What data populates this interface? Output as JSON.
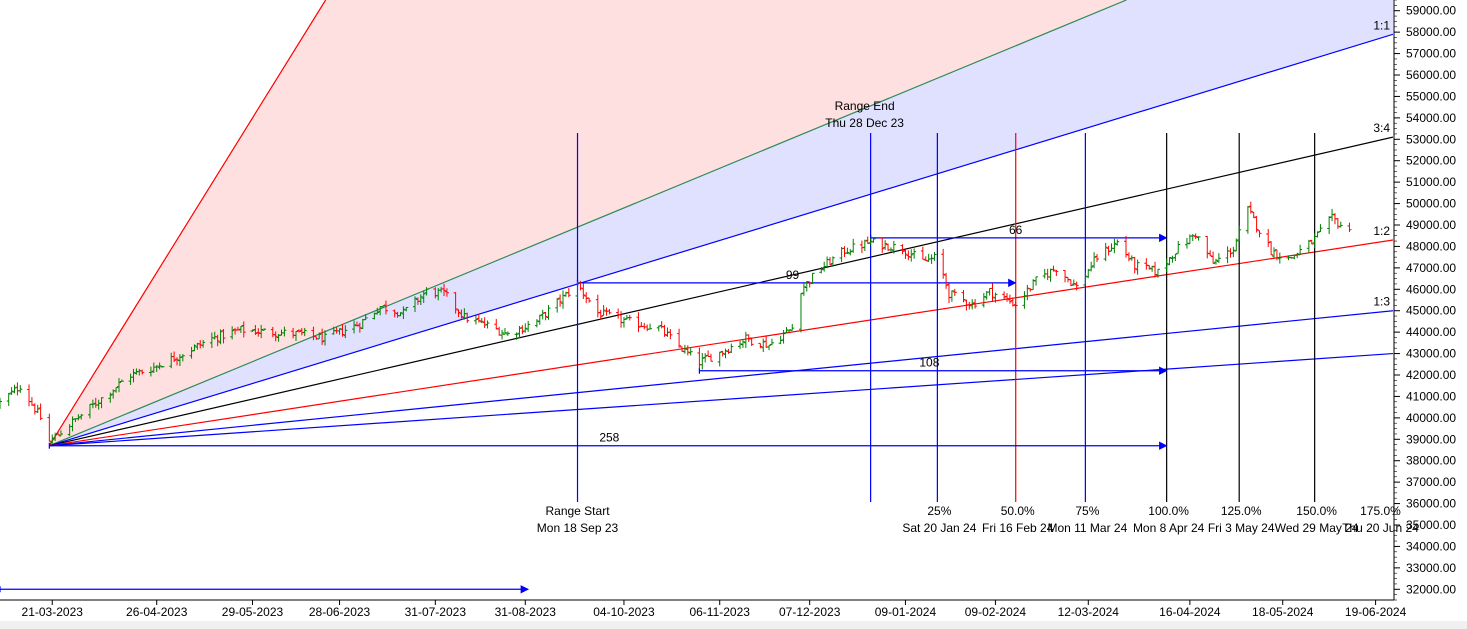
{
  "chart_data": {
    "type": "bar",
    "title": "",
    "xlabel": "",
    "ylabel": "",
    "ylim": [
      31500,
      59500
    ],
    "y_ticks": [
      32000,
      33000,
      34000,
      35000,
      36000,
      37000,
      38000,
      39000,
      40000,
      41000,
      42000,
      43000,
      44000,
      45000,
      46000,
      47000,
      48000,
      49000,
      50000,
      51000,
      52000,
      53000,
      54000,
      55000,
      56000,
      57000,
      58000,
      59000
    ],
    "x_ticks": [
      "21-03-2023",
      "26-04-2023",
      "29-05-2023",
      "28-06-2023",
      "31-07-2023",
      "31-08-2023",
      "04-10-2023",
      "06-11-2023",
      "07-12-2023",
      "09-01-2024",
      "09-02-2024",
      "12-03-2024",
      "16-04-2024",
      "18-05-2024",
      "19-06-2024"
    ],
    "x_start": "2023-03-03",
    "x_end": "2024-06-25",
    "colors": {
      "up": "#008000",
      "down": "#ff0000",
      "fan_blue": "#0000ff",
      "fan_red": "#ff0000",
      "fan_teal": "#2e8b57",
      "fan_black": "#000000",
      "shade_red": "#ffe0e0",
      "shade_blue": "#e0e0ff"
    },
    "ohlc_close_anchors": [
      [
        "2023-03-03",
        40700
      ],
      [
        "2023-03-10",
        41500
      ],
      [
        "2023-03-17",
        40000
      ],
      [
        "2023-03-20",
        38900
      ],
      [
        "2023-03-28",
        39800
      ],
      [
        "2023-04-06",
        40800
      ],
      [
        "2023-04-17",
        42000
      ],
      [
        "2023-04-24",
        42300
      ],
      [
        "2023-05-05",
        43000
      ],
      [
        "2023-05-15",
        43700
      ],
      [
        "2023-05-25",
        44100
      ],
      [
        "2023-06-05",
        44000
      ],
      [
        "2023-06-15",
        43900
      ],
      [
        "2023-06-23",
        43700
      ],
      [
        "2023-07-05",
        44400
      ],
      [
        "2023-07-12",
        45200
      ],
      [
        "2023-07-20",
        44900
      ],
      [
        "2023-07-28",
        45900
      ],
      [
        "2023-08-03",
        45800
      ],
      [
        "2023-08-10",
        44700
      ],
      [
        "2023-08-18",
        44300
      ],
      [
        "2023-08-25",
        43900
      ],
      [
        "2023-09-04",
        44500
      ],
      [
        "2023-09-12",
        45500
      ],
      [
        "2023-09-18",
        46200
      ],
      [
        "2023-09-25",
        44900
      ],
      [
        "2023-10-05",
        44500
      ],
      [
        "2023-10-16",
        44200
      ],
      [
        "2023-10-25",
        43100
      ],
      [
        "2023-10-30",
        42600
      ],
      [
        "2023-11-07",
        43100
      ],
      [
        "2023-11-15",
        43700
      ],
      [
        "2023-11-23",
        43400
      ],
      [
        "2023-12-01",
        44200
      ],
      [
        "2023-12-04",
        46000
      ],
      [
        "2023-12-11",
        47000
      ],
      [
        "2023-12-19",
        47800
      ],
      [
        "2023-12-28",
        48200
      ],
      [
        "2024-01-08",
        47900
      ],
      [
        "2024-01-15",
        47300
      ],
      [
        "2024-01-20",
        47500
      ],
      [
        "2024-01-24",
        45800
      ],
      [
        "2024-02-01",
        45300
      ],
      [
        "2024-02-07",
        45900
      ],
      [
        "2024-02-16",
        45300
      ],
      [
        "2024-02-23",
        46400
      ],
      [
        "2024-03-01",
        47000
      ],
      [
        "2024-03-08",
        46100
      ],
      [
        "2024-03-15",
        47500
      ],
      [
        "2024-03-22",
        48200
      ],
      [
        "2024-03-28",
        47100
      ],
      [
        "2024-04-05",
        46800
      ],
      [
        "2024-04-11",
        47800
      ],
      [
        "2024-04-18",
        48600
      ],
      [
        "2024-04-24",
        47200
      ],
      [
        "2024-05-01",
        47900
      ],
      [
        "2024-05-06",
        49700
      ],
      [
        "2024-05-14",
        47800
      ],
      [
        "2024-05-20",
        47400
      ],
      [
        "2024-05-28",
        48200
      ],
      [
        "2024-06-04",
        49300
      ],
      [
        "2024-06-10",
        48700
      ]
    ],
    "gann_fan": {
      "origin": {
        "date": "2023-03-20",
        "price": 38700
      },
      "lines": [
        {
          "label": "",
          "anchor_date": "2023-06-20",
          "anchor_price": 58800,
          "color": "#ff0000"
        },
        {
          "label": "",
          "anchor_date": "2023-09-18",
          "anchor_price": 48900,
          "color": "#2e8b57"
        },
        {
          "label": "1:1",
          "anchor_date": "2024-06-25",
          "anchor_price": 57900,
          "color": "#0000ff"
        },
        {
          "label": "3:4",
          "anchor_date": "2024-06-25",
          "anchor_price": 53100,
          "color": "#000000"
        },
        {
          "label": "1:2",
          "anchor_date": "2024-06-25",
          "anchor_price": 48300,
          "color": "#ff0000"
        },
        {
          "label": "1:3",
          "anchor_date": "2024-06-25",
          "anchor_price": 45000,
          "color": "#0000ff"
        },
        {
          "label": "",
          "anchor_date": "2024-06-25",
          "anchor_price": 43000,
          "color": "#0000ff"
        }
      ]
    },
    "range_start": {
      "label": "Range Start",
      "date_label": "Mon 18 Sep 23",
      "date": "2023-09-18"
    },
    "range_end": {
      "label": "Range End",
      "date_label": "Thu 28 Dec 23",
      "date": "2023-12-28"
    },
    "fib_time_lines": [
      {
        "pct": "25%",
        "date_label": "Sat 20 Jan 24",
        "date": "2024-01-20",
        "color": "#0000ff"
      },
      {
        "pct": "50.0%",
        "date_label": "Fri 16 Feb 24",
        "date": "2024-02-16",
        "color": "#ff0000"
      },
      {
        "pct": "75%",
        "date_label": "Mon 11 Mar 24",
        "date": "2024-03-11",
        "color": "#0000ff"
      },
      {
        "pct": "100.0%",
        "date_label": "Mon 8 Apr 24",
        "date": "2024-04-08",
        "color": "#000000"
      },
      {
        "pct": "125.0%",
        "date_label": "Fri 3 May 24",
        "date": "2024-05-03",
        "color": "#000000"
      },
      {
        "pct": "150.0%",
        "date_label": "Wed 29 May 24",
        "date": "2024-05-29",
        "color": "#000000"
      },
      {
        "pct": "175.0%",
        "date_label": "Thu 20 Jun 24",
        "date": "2024-06-20",
        "color": ""
      }
    ],
    "count_arrows": [
      {
        "label": "258",
        "from_date": "2023-03-20",
        "to_date": "2024-04-08",
        "price": 38700
      },
      {
        "label": "108",
        "from_date": "2023-10-30",
        "to_date": "2024-04-08",
        "price": 42200
      },
      {
        "label": "99",
        "from_date": "2023-09-18",
        "to_date": "2024-02-16",
        "price": 46300
      },
      {
        "label": "66",
        "from_date": "2023-12-28",
        "to_date": "2024-04-08",
        "price": 48400
      },
      {
        "label": "",
        "from_date": "2023-02-01",
        "to_date": "2023-09-01",
        "price": 32000
      }
    ]
  }
}
